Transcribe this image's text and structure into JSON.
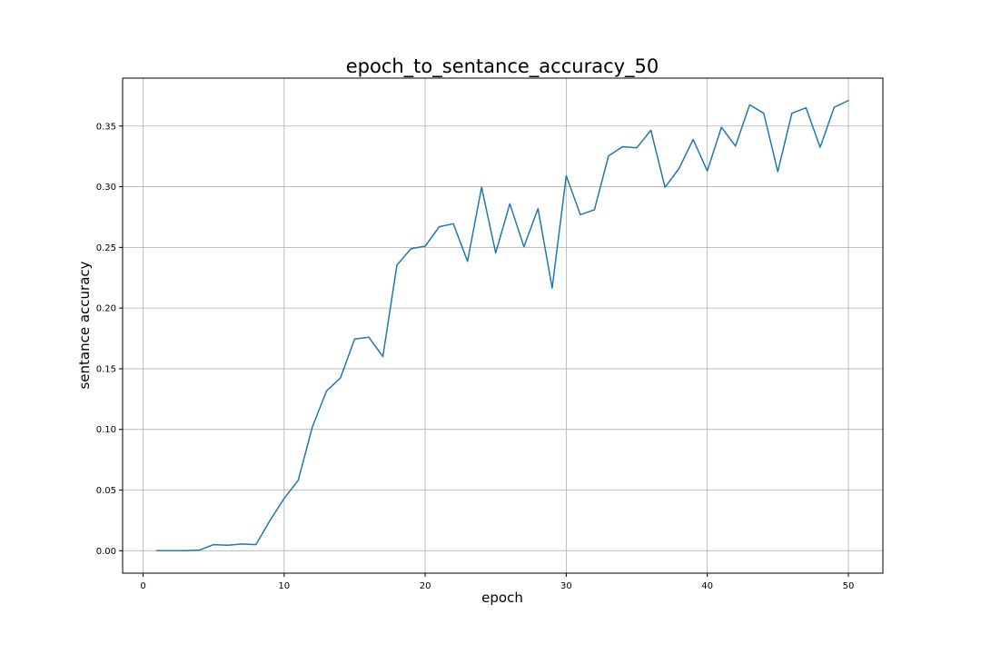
{
  "chart_data": {
    "type": "line",
    "title": "epoch_to_sentance_accuracy_50",
    "xlabel": "epoch",
    "ylabel": "sentance accuracy",
    "xlim": [
      -1.45,
      52.45
    ],
    "ylim": [
      -0.0185,
      0.3895
    ],
    "xticks": [
      0,
      10,
      20,
      30,
      40,
      50
    ],
    "yticks": [
      0.0,
      0.05,
      0.1,
      0.15,
      0.2,
      0.25,
      0.3,
      0.35
    ],
    "ytick_labels": [
      "0.00",
      "0.05",
      "0.10",
      "0.15",
      "0.20",
      "0.25",
      "0.30",
      "0.35"
    ],
    "xtick_labels": [
      "0",
      "10",
      "20",
      "30",
      "40",
      "50"
    ],
    "grid": true,
    "series": [
      {
        "color": "#1f77b4",
        "x": [
          1,
          2,
          3,
          4,
          5,
          6,
          7,
          8,
          9,
          10,
          11,
          12,
          13,
          14,
          15,
          16,
          17,
          18,
          19,
          20,
          21,
          22,
          23,
          24,
          25,
          26,
          27,
          28,
          29,
          30,
          31,
          32,
          33,
          34,
          35,
          36,
          37,
          38,
          39,
          40,
          41,
          42,
          43,
          44,
          45,
          46,
          47,
          48,
          49,
          50
        ],
        "y": [
          0.0,
          0.0,
          0.0,
          0.0005,
          0.005,
          0.0045,
          0.0055,
          0.005,
          0.025,
          0.043,
          0.058,
          0.102,
          0.1315,
          0.1425,
          0.1745,
          0.176,
          0.16,
          0.2355,
          0.249,
          0.251,
          0.267,
          0.2695,
          0.2385,
          0.2995,
          0.2455,
          0.286,
          0.2505,
          0.282,
          0.2165,
          0.309,
          0.277,
          0.281,
          0.3255,
          0.333,
          0.332,
          0.3465,
          0.2995,
          0.315,
          0.339,
          0.313,
          0.349,
          0.3335,
          0.3675,
          0.3605,
          0.3125,
          0.3605,
          0.365,
          0.3325,
          0.3655,
          0.371
        ]
      }
    ]
  }
}
